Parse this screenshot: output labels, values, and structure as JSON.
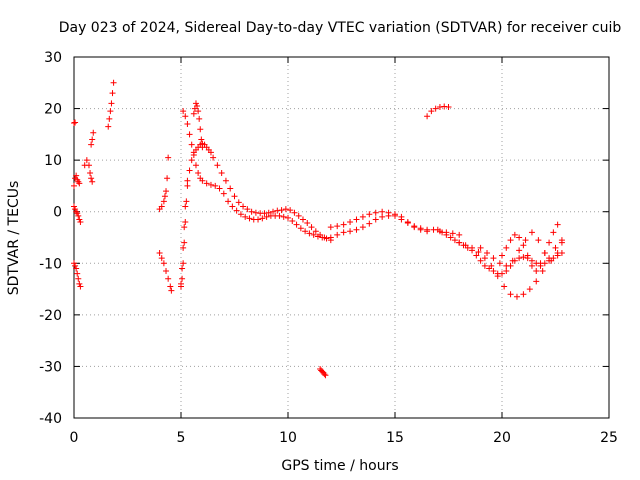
{
  "chart_data": {
    "type": "scatter",
    "title": "Day 023 of 2024, Sidereal Day-to-day VTEC variation (SDTVAR) for receiver cuib",
    "xlabel": "GPS time / hours",
    "ylabel": "SDTVAR / TECUs",
    "xlim": [
      0,
      25
    ],
    "ylim": [
      -40,
      30
    ],
    "xticks": [
      0,
      5,
      10,
      15,
      20,
      25
    ],
    "yticks": [
      -40,
      -30,
      -20,
      -10,
      0,
      10,
      20,
      30
    ],
    "xtick_labels": [
      "0",
      "5",
      "10",
      "15",
      "20",
      "25"
    ],
    "ytick_labels": [
      "-40",
      "-30",
      "-20",
      "-10",
      "0",
      "10",
      "20",
      "30"
    ],
    "grid": true,
    "marker": "+",
    "color": "#ff0000",
    "series": [
      {
        "name": "isolated-high",
        "x": [
          0.0,
          0.05
        ],
        "y": [
          17.2,
          17.3
        ]
      },
      {
        "name": "arc-0a",
        "x": [
          0.0,
          0.05,
          0.1,
          0.15,
          0.2,
          0.25
        ],
        "y": [
          5.0,
          6.5,
          7.0,
          6.2,
          5.8,
          5.5
        ]
      },
      {
        "name": "arc-0b",
        "x": [
          0.0,
          0.05,
          0.1,
          0.15,
          0.2,
          0.25,
          0.3
        ],
        "y": [
          1.0,
          0.5,
          0.0,
          -0.3,
          -0.8,
          -1.5,
          -2.0
        ]
      },
      {
        "name": "arc-0c",
        "x": [
          0.0,
          0.05,
          0.1,
          0.15,
          0.2,
          0.25,
          0.3
        ],
        "y": [
          -10.0,
          -10.5,
          -11.0,
          -12.0,
          -13.0,
          -14.0,
          -14.5
        ]
      },
      {
        "name": "arc-0d",
        "x": [
          0.5,
          0.6,
          0.7,
          0.75,
          0.8,
          0.85
        ],
        "y": [
          9.0,
          10.0,
          9.0,
          7.5,
          6.5,
          5.8
        ]
      },
      {
        "name": "arc-0e",
        "x": [
          0.8,
          0.85,
          0.9
        ],
        "y": [
          13.0,
          14.0,
          15.3
        ]
      },
      {
        "name": "arc-1a",
        "x": [
          1.6,
          1.65,
          1.7,
          1.75,
          1.8,
          1.85
        ],
        "y": [
          16.5,
          18.0,
          19.5,
          21.0,
          23.0,
          25.0
        ]
      },
      {
        "name": "arc-4a",
        "x": [
          4.0,
          4.1,
          4.2,
          4.25,
          4.3,
          4.35,
          4.4
        ],
        "y": [
          0.5,
          1.0,
          2.0,
          3.0,
          4.0,
          6.5,
          10.5
        ]
      },
      {
        "name": "arc-4b",
        "x": [
          4.0,
          4.1,
          4.2,
          4.3,
          4.4,
          4.5,
          4.55
        ],
        "y": [
          -8.0,
          -9.0,
          -10.0,
          -11.5,
          -13.0,
          -14.5,
          -15.3
        ]
      },
      {
        "name": "arc-5a",
        "x": [
          5.0,
          5.05,
          5.1,
          5.15,
          5.2,
          5.3,
          5.4,
          5.5,
          5.6,
          5.7,
          5.8,
          5.9,
          6.0,
          6.1,
          6.2,
          6.3,
          6.4,
          6.5,
          6.7,
          6.9,
          7.1,
          7.3,
          7.5,
          7.7,
          7.9,
          8.1,
          8.3,
          8.5,
          8.7,
          8.9,
          9.1,
          9.3,
          9.5,
          9.7,
          9.9,
          10.1,
          10.3,
          10.5,
          10.7,
          10.9,
          11.1,
          11.3,
          11.5,
          11.7
        ],
        "y": [
          -14.0,
          -11.0,
          -7.0,
          -3.0,
          1.0,
          5.0,
          8.0,
          10.0,
          11.5,
          12.0,
          12.5,
          13.0,
          13.2,
          13.0,
          12.5,
          12.0,
          11.5,
          10.5,
          9.0,
          7.5,
          6.0,
          4.5,
          3.0,
          1.8,
          1.0,
          0.5,
          0.0,
          -0.2,
          -0.3,
          -0.3,
          -0.2,
          0.0,
          0.2,
          0.3,
          0.5,
          0.3,
          -0.2,
          -0.8,
          -1.5,
          -2.2,
          -3.0,
          -3.8,
          -4.5,
          -5.0
        ]
      },
      {
        "name": "arc-5b",
        "x": [
          5.1,
          5.2,
          5.3,
          5.4,
          5.5,
          5.6,
          5.7,
          5.8,
          5.9,
          6.0,
          6.2,
          6.4,
          6.6,
          6.8,
          7.0,
          7.2,
          7.4,
          7.6,
          7.8,
          8.0,
          8.2,
          8.4,
          8.6,
          8.8,
          9.0,
          9.2,
          9.4,
          9.6,
          9.8,
          10.0,
          10.2,
          10.4,
          10.6,
          10.8,
          11.0,
          11.2,
          11.4,
          11.6,
          11.8,
          12.0
        ],
        "y": [
          19.5,
          18.5,
          17.0,
          15.0,
          13.0,
          11.0,
          9.0,
          7.5,
          6.5,
          6.0,
          5.5,
          5.2,
          5.0,
          4.5,
          3.5,
          2.0,
          1.0,
          0.2,
          -0.5,
          -1.0,
          -1.3,
          -1.5,
          -1.5,
          -1.3,
          -1.0,
          -0.8,
          -0.8,
          -0.8,
          -1.0,
          -1.2,
          -1.8,
          -2.5,
          -3.2,
          -3.8,
          -4.2,
          -4.5,
          -4.8,
          -5.0,
          -5.2,
          -5.5
        ]
      },
      {
        "name": "arc-5c",
        "x": [
          5.0,
          5.05,
          5.1,
          5.15,
          5.2,
          5.25,
          5.3
        ],
        "y": [
          -14.5,
          -13.0,
          -10.0,
          -6.0,
          -2.0,
          2.0,
          6.0
        ]
      },
      {
        "name": "arc-5d",
        "x": [
          5.6,
          5.65,
          5.7,
          5.75,
          5.8,
          5.85,
          5.9,
          5.95,
          6.0
        ],
        "y": [
          19.0,
          20.0,
          21.0,
          20.5,
          19.5,
          18.0,
          16.0,
          14.0,
          12.5
        ]
      },
      {
        "name": "arc-11",
        "x": [
          11.5,
          11.55,
          11.6,
          11.65,
          11.7,
          11.75
        ],
        "y": [
          -30.5,
          -30.8,
          -31.0,
          -31.2,
          -31.5,
          -31.7
        ]
      },
      {
        "name": "arc-12a",
        "x": [
          12.0,
          12.3,
          12.6,
          12.9,
          13.2,
          13.5,
          13.8,
          14.1,
          14.4,
          14.7,
          15.0,
          15.3,
          15.6,
          15.9,
          16.2,
          16.5,
          16.8,
          17.1,
          17.4,
          17.7,
          18.0
        ],
        "y": [
          -5.0,
          -4.5,
          -4.0,
          -3.8,
          -3.5,
          -3.0,
          -2.3,
          -1.5,
          -1.0,
          -0.8,
          -0.5,
          -1.0,
          -2.0,
          -3.0,
          -3.5,
          -3.8,
          -3.5,
          -3.8,
          -4.0,
          -4.2,
          -4.5
        ]
      },
      {
        "name": "arc-12b",
        "x": [
          12.0,
          12.3,
          12.6,
          12.9,
          13.2,
          13.5,
          13.8,
          14.1,
          14.4,
          14.7,
          15.0,
          15.3,
          15.6,
          15.9,
          16.2,
          16.5
        ],
        "y": [
          -3.0,
          -2.8,
          -2.5,
          -2.0,
          -1.5,
          -1.0,
          -0.5,
          -0.2,
          0.0,
          -0.2,
          -0.8,
          -1.5,
          -2.2,
          -2.8,
          -3.2,
          -3.5
        ]
      },
      {
        "name": "arc-16",
        "x": [
          16.5,
          16.7,
          16.9,
          17.1,
          17.3,
          17.5
        ],
        "y": [
          18.5,
          19.5,
          20.0,
          20.3,
          20.4,
          20.3
        ]
      },
      {
        "name": "arc-17",
        "x": [
          17.0,
          17.2,
          17.4,
          17.6,
          17.8,
          18.0,
          18.2,
          18.4,
          18.6,
          18.8,
          19.0,
          19.2,
          19.4,
          19.6,
          19.8,
          20.0,
          20.2,
          20.4,
          20.6,
          20.8,
          21.0,
          21.2,
          21.4,
          21.6,
          21.8,
          22.0,
          22.2,
          22.4,
          22.6,
          22.8
        ],
        "y": [
          -3.5,
          -4.0,
          -4.5,
          -5.0,
          -5.5,
          -6.0,
          -6.5,
          -7.0,
          -7.5,
          -8.5,
          -9.5,
          -10.5,
          -11.0,
          -11.5,
          -12.0,
          -12.0,
          -11.5,
          -10.5,
          -9.5,
          -9.0,
          -8.8,
          -9.0,
          -9.5,
          -10.0,
          -10.5,
          -10.0,
          -9.5,
          -9.0,
          -8.5,
          -8.0
        ]
      },
      {
        "name": "arc-18",
        "x": [
          18.0,
          18.3,
          18.6,
          18.9,
          19.2,
          19.5,
          19.8,
          20.1,
          20.4,
          20.7,
          21.0,
          21.3,
          21.6,
          21.9,
          22.2,
          22.5,
          22.8
        ],
        "y": [
          -6.0,
          -6.5,
          -7.0,
          -7.8,
          -9.0,
          -10.5,
          -12.5,
          -14.5,
          -16.0,
          -16.5,
          -16.0,
          -15.0,
          -13.5,
          -11.5,
          -9.0,
          -7.0,
          -5.5
        ]
      },
      {
        "name": "arc-19",
        "x": [
          19.0,
          19.3,
          19.6,
          19.9,
          20.2,
          20.5,
          20.8,
          21.1,
          21.4,
          21.7,
          22.0,
          22.3,
          22.6,
          22.8
        ],
        "y": [
          -7.0,
          -8.0,
          -9.0,
          -10.0,
          -10.5,
          -9.5,
          -7.5,
          -5.5,
          -4.0,
          -5.5,
          -8.0,
          -9.5,
          -8.0,
          -6.0
        ]
      },
      {
        "name": "arc-20",
        "x": [
          20.0,
          20.2,
          20.4,
          20.6,
          20.8,
          21.0,
          21.2,
          21.4,
          21.6,
          21.8,
          22.0,
          22.2,
          22.4,
          22.6
        ],
        "y": [
          -8.5,
          -7.0,
          -5.5,
          -4.5,
          -5.0,
          -6.5,
          -8.5,
          -10.5,
          -11.5,
          -10.0,
          -8.0,
          -6.0,
          -4.0,
          -2.5
        ]
      }
    ]
  }
}
